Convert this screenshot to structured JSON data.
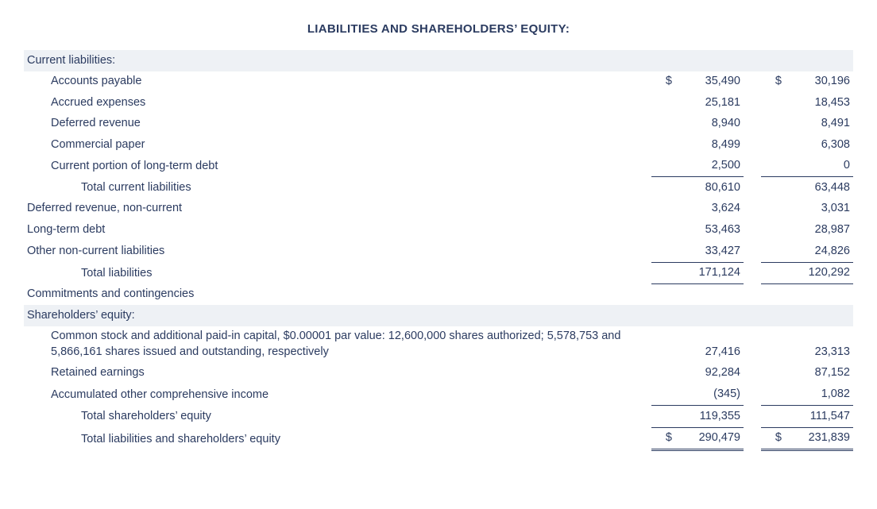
{
  "title": "LIABILITIES AND SHAREHOLDERS’ EQUITY:",
  "colors": {
    "text": "#2b3b60",
    "shade_bg": "#eef1f5",
    "background": "#ffffff"
  },
  "typography": {
    "title_fontsize_pt": 11,
    "body_fontsize_pt": 11,
    "title_weight": "bold"
  },
  "columns": {
    "layout": [
      "label",
      "currency1",
      "value1",
      "gap",
      "currency2",
      "value2"
    ],
    "value_align": "right"
  },
  "currency_symbol": "$",
  "rows": [
    {
      "label": "Current liabilities:",
      "indent": 0,
      "shade": true
    },
    {
      "label": "Accounts payable",
      "indent": 1,
      "cur1": "$",
      "val1": "35,490",
      "cur2": "$",
      "val2": "30,196"
    },
    {
      "label": "Accrued expenses",
      "indent": 1,
      "val1": "25,181",
      "val2": "18,453"
    },
    {
      "label": "Deferred revenue",
      "indent": 1,
      "val1": "8,940",
      "val2": "8,491"
    },
    {
      "label": "Commercial paper",
      "indent": 1,
      "val1": "8,499",
      "val2": "6,308"
    },
    {
      "label": "Current portion of long-term debt",
      "indent": 1,
      "val1": "2,500",
      "val2": "0",
      "underline_vals": "single"
    },
    {
      "label": "Total current liabilities",
      "indent": 2,
      "val1": "80,610",
      "val2": "63,448"
    },
    {
      "label": "Deferred revenue, non-current",
      "indent": 0,
      "val1": "3,624",
      "val2": "3,031"
    },
    {
      "label": "Long-term debt",
      "indent": 0,
      "val1": "53,463",
      "val2": "28,987"
    },
    {
      "label": "Other non-current liabilities",
      "indent": 0,
      "val1": "33,427",
      "val2": "24,826",
      "underline_vals": "single"
    },
    {
      "label": "Total liabilities",
      "indent": 2,
      "val1": "171,124",
      "val2": "120,292",
      "underline_vals": "single"
    },
    {
      "label": "Commitments and contingencies",
      "indent": 0
    },
    {
      "label": "Shareholders’ equity:",
      "indent": 0,
      "shade": true
    },
    {
      "label": "Common stock and additional paid-in capital, $0.00001 par value: 12,600,000 shares authorized; 5,578,753 and 5,866,161 shares issued and outstanding, respectively",
      "indent": 1,
      "val1": "27,416",
      "val2": "23,313"
    },
    {
      "label": "Retained earnings",
      "indent": 1,
      "val1": "92,284",
      "val2": "87,152"
    },
    {
      "label": "Accumulated other comprehensive income",
      "indent": 1,
      "val1": "(345)",
      "val2": "1,082",
      "underline_vals": "single"
    },
    {
      "label": "Total shareholders’ equity",
      "indent": 2,
      "val1": "119,355",
      "val2": "111,547",
      "underline_vals": "total"
    },
    {
      "label": "Total liabilities and shareholders’ equity",
      "indent": 2,
      "cur1": "$",
      "val1": "290,479",
      "cur2": "$",
      "val2": "231,839",
      "underline_vals": "grand"
    }
  ]
}
